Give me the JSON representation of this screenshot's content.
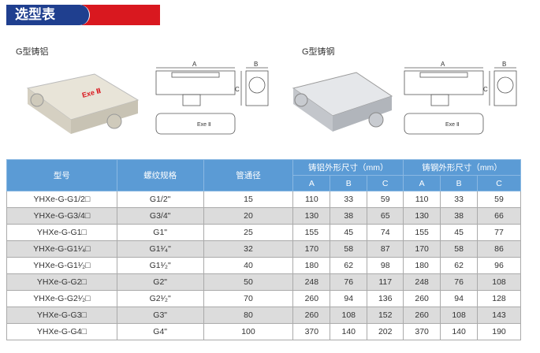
{
  "header": {
    "title": "选型表",
    "colors": {
      "blue": "#1f3f8f",
      "red": "#d9181f",
      "table_header": "#5b9bd5"
    }
  },
  "sections": {
    "aluminum": "G型铸铝",
    "steel": "G型铸钢"
  },
  "drawing": {
    "dim_a": "A",
    "dim_b": "B",
    "dim_c": "C",
    "marking": "Exe Ⅱ"
  },
  "table": {
    "headers": {
      "model": "型号",
      "thread": "螺纹规格",
      "pipe": "管通径",
      "aluminum": "铸铝外形尺寸（mm）",
      "steel": "铸钢外形尺寸（mm）",
      "a": "A",
      "b": "B",
      "c": "C"
    },
    "rows": [
      [
        "YHXe-G-G1/2□",
        "G1/2\"",
        "15",
        "110",
        "33",
        "59",
        "110",
        "33",
        "59"
      ],
      [
        "YHXe-G-G3/4□",
        "G3/4\"",
        "20",
        "130",
        "38",
        "65",
        "130",
        "38",
        "66"
      ],
      [
        "YHXe-G-G1□",
        "G1\"",
        "25",
        "155",
        "45",
        "74",
        "155",
        "45",
        "77"
      ],
      [
        "YHXe-G-G1¹⁄₄□",
        "G1¹⁄₄\"",
        "32",
        "170",
        "58",
        "87",
        "170",
        "58",
        "86"
      ],
      [
        "YHXe-G-G1¹⁄₂□",
        "G1¹⁄₂\"",
        "40",
        "180",
        "62",
        "98",
        "180",
        "62",
        "96"
      ],
      [
        "YHXe-G-G2□",
        "G2\"",
        "50",
        "248",
        "76",
        "117",
        "248",
        "76",
        "108"
      ],
      [
        "YHXe-G-G2¹⁄₂□",
        "G2¹⁄₂\"",
        "70",
        "260",
        "94",
        "136",
        "260",
        "94",
        "128"
      ],
      [
        "YHXe-G-G3□",
        "G3\"",
        "80",
        "260",
        "108",
        "152",
        "260",
        "108",
        "143"
      ],
      [
        "YHXe-G-G4□",
        "G4\"",
        "100",
        "370",
        "140",
        "202",
        "370",
        "140",
        "190"
      ]
    ]
  }
}
